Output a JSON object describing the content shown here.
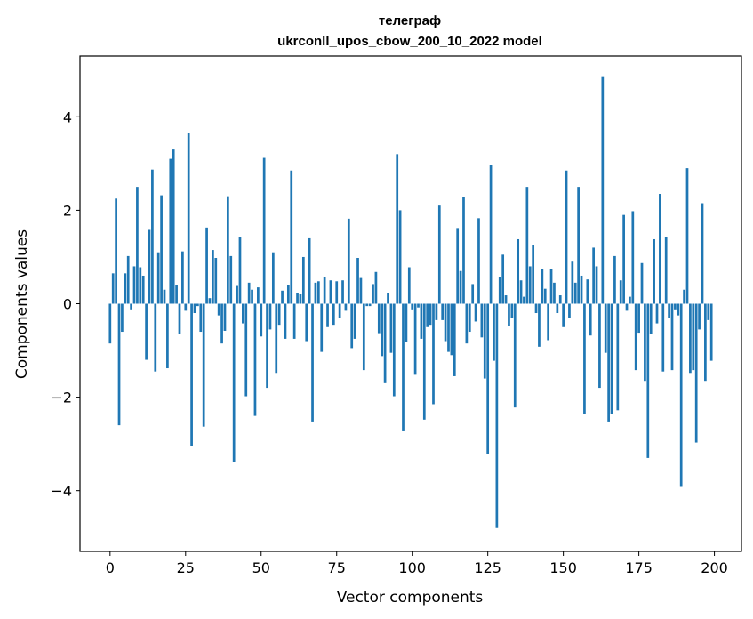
{
  "chart_data": {
    "type": "bar",
    "title": "телеграф",
    "subtitle": "ukrconll_upos_cbow_200_10_2022 model",
    "xlabel": "Vector components",
    "ylabel": "Components values",
    "xlim": [
      -9.95,
      208.95
    ],
    "ylim": [
      -5.3,
      5.3
    ],
    "xticks": [
      0,
      25,
      50,
      75,
      100,
      125,
      150,
      175,
      200
    ],
    "yticks": [
      -4,
      -2,
      0,
      2,
      4
    ],
    "ytick_labels": [
      "−4",
      "−2",
      "0",
      "2",
      "4"
    ],
    "grid": false,
    "bar_color": "#1f77b4",
    "x": [
      0,
      1,
      2,
      3,
      4,
      5,
      6,
      7,
      8,
      9,
      10,
      11,
      12,
      13,
      14,
      15,
      16,
      17,
      18,
      19,
      20,
      21,
      22,
      23,
      24,
      25,
      26,
      27,
      28,
      29,
      30,
      31,
      32,
      33,
      34,
      35,
      36,
      37,
      38,
      39,
      40,
      41,
      42,
      43,
      44,
      45,
      46,
      47,
      48,
      49,
      50,
      51,
      52,
      53,
      54,
      55,
      56,
      57,
      58,
      59,
      60,
      61,
      62,
      63,
      64,
      65,
      66,
      67,
      68,
      69,
      70,
      71,
      72,
      73,
      74,
      75,
      76,
      77,
      78,
      79,
      80,
      81,
      82,
      83,
      84,
      85,
      86,
      87,
      88,
      89,
      90,
      91,
      92,
      93,
      94,
      95,
      96,
      97,
      98,
      99,
      100,
      101,
      102,
      103,
      104,
      105,
      106,
      107,
      108,
      109,
      110,
      111,
      112,
      113,
      114,
      115,
      116,
      117,
      118,
      119,
      120,
      121,
      122,
      123,
      124,
      125,
      126,
      127,
      128,
      129,
      130,
      131,
      132,
      133,
      134,
      135,
      136,
      137,
      138,
      139,
      140,
      141,
      142,
      143,
      144,
      145,
      146,
      147,
      148,
      149,
      150,
      151,
      152,
      153,
      154,
      155,
      156,
      157,
      158,
      159,
      160,
      161,
      162,
      163,
      164,
      165,
      166,
      167,
      168,
      169,
      170,
      171,
      172,
      173,
      174,
      175,
      176,
      177,
      178,
      179,
      180,
      181,
      182,
      183,
      184,
      185,
      186,
      187,
      188,
      189,
      190,
      191,
      192,
      193,
      194,
      195,
      196,
      197,
      198,
      199
    ],
    "values": [
      -0.85,
      0.65,
      2.25,
      -2.6,
      -0.6,
      0.65,
      1.02,
      -0.12,
      0.8,
      2.5,
      0.78,
      0.6,
      -1.2,
      1.58,
      2.87,
      -1.45,
      1.1,
      2.32,
      0.3,
      -1.38,
      3.1,
      3.3,
      0.4,
      -0.65,
      1.12,
      -0.15,
      3.65,
      -3.05,
      -0.2,
      -0.05,
      -0.6,
      -2.63,
      1.63,
      0.12,
      1.15,
      0.98,
      -0.25,
      -0.85,
      -0.58,
      2.3,
      1.02,
      -3.38,
      0.38,
      1.43,
      -0.42,
      -1.98,
      0.45,
      0.3,
      -2.4,
      0.35,
      -0.7,
      3.12,
      -1.8,
      -0.55,
      1.1,
      -1.48,
      -0.45,
      0.28,
      -0.75,
      0.4,
      2.85,
      -0.75,
      0.22,
      0.2,
      1.0,
      -0.8,
      1.4,
      -2.52,
      0.45,
      0.48,
      -1.03,
      0.58,
      -0.5,
      0.5,
      -0.45,
      0.48,
      -0.3,
      0.5,
      -0.15,
      1.82,
      -0.95,
      -0.75,
      0.98,
      0.55,
      -1.42,
      -0.05,
      -0.05,
      0.42,
      0.68,
      -0.63,
      -1.12,
      -1.7,
      0.22,
      -1.05,
      -1.98,
      3.2,
      2.0,
      -2.73,
      -0.82,
      0.78,
      -0.12,
      -1.52,
      -0.08,
      -0.75,
      -2.48,
      -0.5,
      -0.45,
      -2.15,
      -0.35,
      2.1,
      -0.35,
      -0.8,
      -1.03,
      -1.1,
      -1.55,
      1.62,
      0.7,
      2.28,
      -0.85,
      -0.6,
      0.42,
      -0.38,
      1.83,
      -0.72,
      -1.6,
      -3.22,
      2.97,
      -1.22,
      -4.8,
      0.57,
      1.05,
      0.18,
      -0.48,
      -0.3,
      -2.22,
      1.38,
      0.5,
      0.15,
      2.5,
      0.8,
      1.25,
      -0.2,
      -0.92,
      0.75,
      0.32,
      -0.78,
      0.75,
      0.45,
      -0.2,
      0.18,
      -0.5,
      2.85,
      -0.3,
      0.9,
      0.45,
      2.5,
      0.6,
      -2.35,
      0.52,
      -0.68,
      1.2,
      0.8,
      -1.8,
      4.85,
      -1.05,
      -2.52,
      -2.35,
      1.02,
      -2.28,
      0.5,
      1.9,
      -0.15,
      0.15,
      1.98,
      -1.42,
      -0.62,
      0.87,
      -1.65,
      -3.3,
      -0.65,
      1.38,
      -0.42,
      2.35,
      -1.45,
      1.42,
      -0.3,
      -1.42,
      -0.12,
      -0.25,
      -3.92,
      0.3,
      2.9,
      -1.48,
      -1.42,
      -2.97,
      -0.55,
      2.15,
      -1.65,
      -0.35,
      -1.22
    ]
  }
}
